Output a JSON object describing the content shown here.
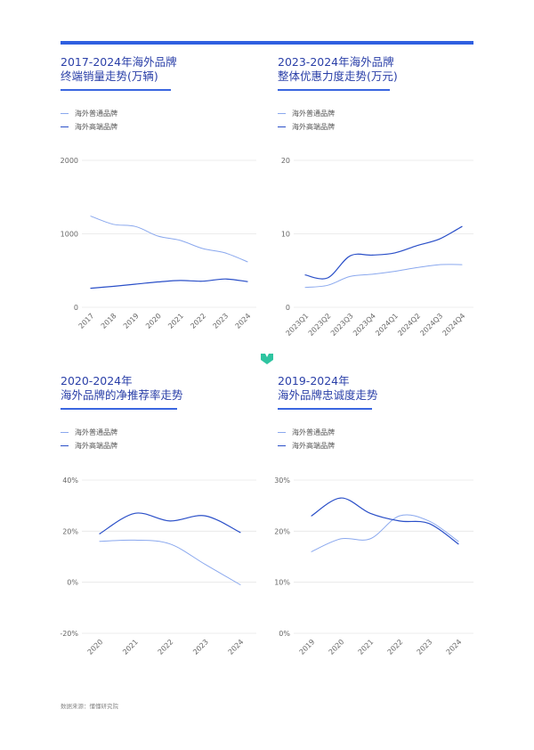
{
  "colors": {
    "accent": "#2f5fe0",
    "title": "#2a3fa8",
    "light_series": "#8aa8ee",
    "dark_series": "#2a4fc8",
    "grid": "#e6e6e6",
    "logo": "#2ec4a0"
  },
  "logo_icon": "brand-logo-icon",
  "source": "数据来源：懂懂研究院",
  "chart_data": [
    {
      "type": "line",
      "title_lines": [
        "2017-2024年海外品牌",
        "终端销量走势(万辆)"
      ],
      "categories": [
        "2017",
        "2018",
        "2019",
        "2020",
        "2021",
        "2022",
        "2023",
        "2024"
      ],
      "ylim": [
        0,
        2000
      ],
      "yticks": [
        "0",
        "1000",
        "2000"
      ],
      "ytick_values": [
        0,
        1000,
        2000
      ],
      "series": [
        {
          "name": "海外普通品牌",
          "values": [
            1240,
            1130,
            1100,
            970,
            910,
            800,
            740,
            620
          ]
        },
        {
          "name": "海外高端品牌",
          "values": [
            260,
            285,
            315,
            345,
            365,
            355,
            385,
            350
          ]
        }
      ]
    },
    {
      "type": "line",
      "title_lines": [
        "2023-2024年海外品牌",
        "整体优惠力度走势(万元)"
      ],
      "categories": [
        "2023Q1",
        "2023Q2",
        "2023Q3",
        "2023Q4",
        "2024Q1",
        "2024Q2",
        "2024Q3",
        "2024Q4"
      ],
      "ylim": [
        0,
        20
      ],
      "yticks": [
        "0",
        "10",
        "20"
      ],
      "ytick_values": [
        0,
        10,
        20
      ],
      "series": [
        {
          "name": "海外普通品牌",
          "values": [
            2.7,
            3.0,
            4.2,
            4.5,
            4.9,
            5.4,
            5.8,
            5.8
          ]
        },
        {
          "name": "海外高端品牌",
          "values": [
            4.4,
            4.0,
            7.0,
            7.1,
            7.4,
            8.4,
            9.3,
            11.0
          ]
        }
      ]
    },
    {
      "type": "line",
      "title_lines": [
        "2020-2024年",
        "海外品牌的净推荐率走势"
      ],
      "categories": [
        "2020",
        "2021",
        "2022",
        "2023",
        "2024"
      ],
      "ylim": [
        -20,
        40
      ],
      "yticks": [
        "-20%",
        "0%",
        "20%",
        "40%"
      ],
      "ytick_values": [
        -20,
        0,
        20,
        40
      ],
      "series": [
        {
          "name": "海外普通品牌",
          "values": [
            16,
            16.5,
            15,
            7,
            -1
          ]
        },
        {
          "name": "海外高端品牌",
          "values": [
            19,
            27,
            24,
            26,
            19.5
          ]
        }
      ]
    },
    {
      "type": "line",
      "title_lines": [
        "2019-2024年",
        "海外品牌忠诚度走势"
      ],
      "categories": [
        "2019",
        "2020",
        "2021",
        "2022",
        "2023",
        "2024"
      ],
      "ylim": [
        0,
        30
      ],
      "yticks": [
        "0%",
        "10%",
        "20%",
        "30%"
      ],
      "ytick_values": [
        0,
        10,
        20,
        30
      ],
      "series": [
        {
          "name": "海外普通品牌",
          "values": [
            16,
            18.5,
            18.5,
            23,
            22,
            18
          ]
        },
        {
          "name": "海外高端品牌",
          "values": [
            23,
            26.5,
            23.5,
            22,
            21.5,
            17.5
          ]
        }
      ]
    }
  ]
}
